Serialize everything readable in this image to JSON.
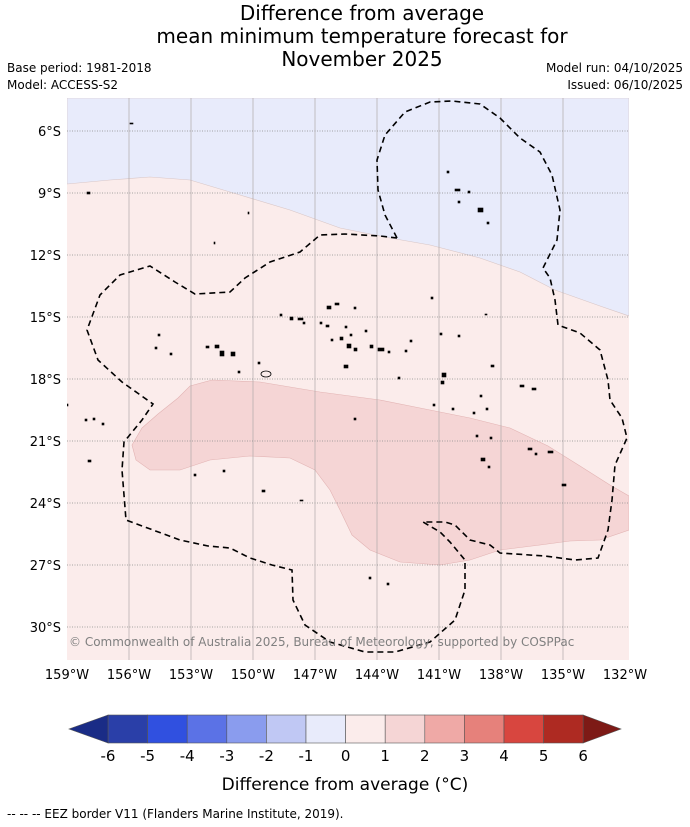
{
  "header": {
    "title_lines": [
      "Difference from average",
      "mean minimum temperature forecast for",
      "November 2025"
    ],
    "base_period": "Base period: 1981-2018",
    "model": "Model: ACCESS-S2",
    "model_run": "Model run: 04/10/2025",
    "issued": "Issued: 06/10/2025"
  },
  "map": {
    "lon_labels": [
      "159°W",
      "156°W",
      "153°W",
      "150°W",
      "147°W",
      "144°W",
      "141°W",
      "138°W",
      "135°W",
      "132°W"
    ],
    "lat_labels": [
      "6°S",
      "9°S",
      "12°S",
      "15°S",
      "18°S",
      "21°S",
      "24°S",
      "27°S",
      "30°S"
    ],
    "lon_values": [
      -159,
      -156,
      -153,
      -150,
      -147,
      -144,
      -141,
      -138,
      -135,
      -132
    ],
    "lat_values": [
      -6,
      -9,
      -12,
      -15,
      -18,
      -21,
      -24,
      -27,
      -30
    ],
    "copyright": "© Commonwealth of Australia 2025, Bureau of Meteorology, supported by COSPPac"
  },
  "colorbar": {
    "ticks": [
      "-6",
      "-5",
      "-4",
      "-3",
      "-2",
      "-1",
      "0",
      "1",
      "2",
      "3",
      "4",
      "5",
      "6"
    ],
    "colors": [
      "#2a3fa8",
      "#3050e0",
      "#5b72e6",
      "#8a9cee",
      "#c0c8f4",
      "#e8ebfb",
      "#fbeceb",
      "#f5d5d5",
      "#efa9a6",
      "#e6817b",
      "#d8463f",
      "#ae2a22"
    ],
    "extend_low_color": "#1a2c86",
    "extend_high_color": "#7d1a16",
    "label": "Difference from average (°C)"
  },
  "legend": {
    "eez_text": "--  --  -- EEZ border V11 (Flanders Marine Institute, 2019)."
  }
}
